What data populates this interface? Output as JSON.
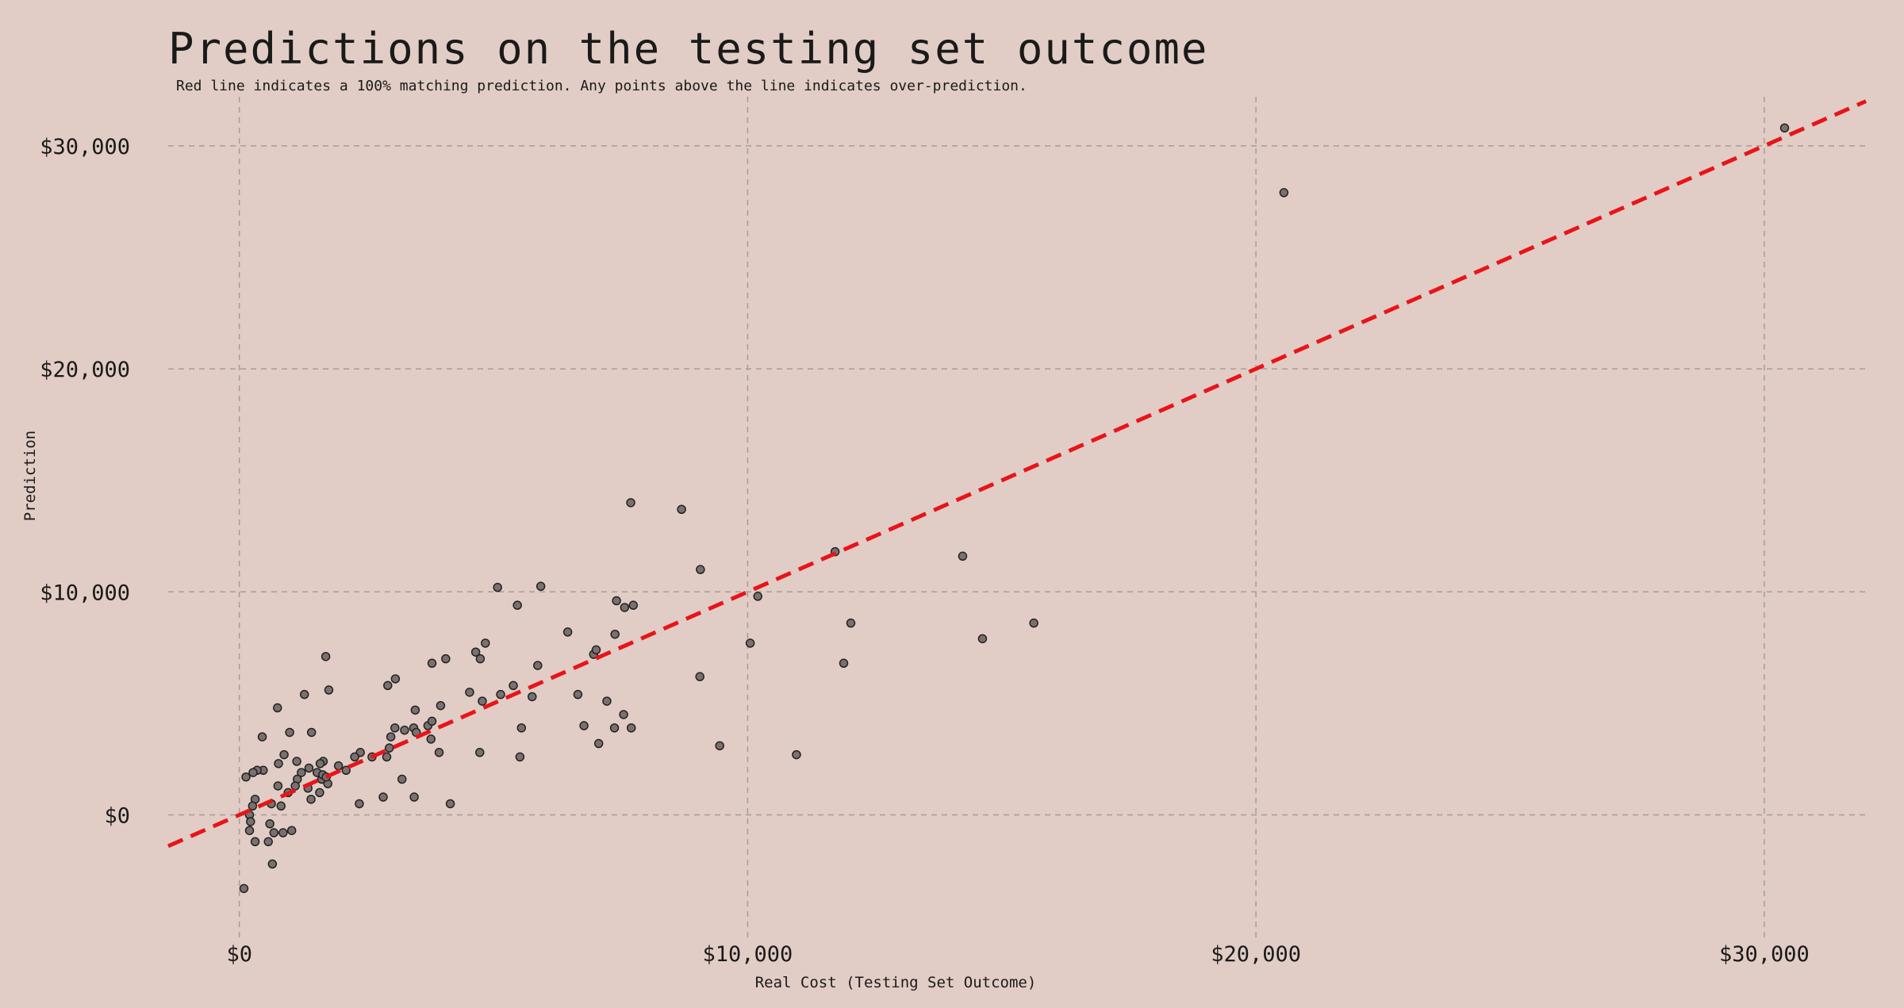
{
  "colors": {
    "background": "#e1cdc5",
    "grid": "#a89c97",
    "reference_line": "#e8141a",
    "point_fill": "#7a7070",
    "point_stroke": "#222222"
  },
  "chart_data": {
    "type": "scatter",
    "title": "Predictions on the testing set outcome",
    "subtitle": "Red line indicates a 100% matching prediction. Any points above the line indicates over-prediction.",
    "xlabel": "Real Cost (Testing Set Outcome)",
    "ylabel": "Prediction",
    "xlim": [
      -1400,
      32000
    ],
    "ylim": [
      -5600,
      32200
    ],
    "xticks": [
      0,
      10000,
      20000,
      30000
    ],
    "yticks": [
      0,
      10000,
      20000,
      30000
    ],
    "xtick_labels": [
      "$0",
      "$10,000",
      "$20,000",
      "$30,000"
    ],
    "ytick_labels": [
      "$0",
      "$10,000",
      "$20,000",
      "$30,000"
    ],
    "grid": true,
    "reference_line": {
      "style": "dashed",
      "slope": 1,
      "intercept": 0
    },
    "series": [
      {
        "points": [
          [
            30400,
            30800
          ],
          [
            20550,
            27900
          ],
          [
            7700,
            14000
          ],
          [
            8700,
            13700
          ],
          [
            14230,
            11600
          ],
          [
            11720,
            11800
          ],
          [
            9070,
            11000
          ],
          [
            5080,
            10200
          ],
          [
            5930,
            10250
          ],
          [
            5470,
            9400
          ],
          [
            7420,
            9600
          ],
          [
            7750,
            9400
          ],
          [
            7580,
            9300
          ],
          [
            10200,
            9800
          ],
          [
            10050,
            7700
          ],
          [
            12030,
            8600
          ],
          [
            14620,
            7900
          ],
          [
            15630,
            8600
          ],
          [
            11890,
            6800
          ],
          [
            9060,
            6200
          ],
          [
            9450,
            3100
          ],
          [
            10960,
            2700
          ],
          [
            6460,
            8200
          ],
          [
            7390,
            8100
          ],
          [
            6970,
            7200
          ],
          [
            7020,
            7400
          ],
          [
            6660,
            5400
          ],
          [
            6780,
            4000
          ],
          [
            7070,
            3200
          ],
          [
            7230,
            5100
          ],
          [
            7380,
            3900
          ],
          [
            7560,
            4500
          ],
          [
            7710,
            3900
          ],
          [
            4840,
            7700
          ],
          [
            4650,
            7300
          ],
          [
            4740,
            7000
          ],
          [
            4530,
            5500
          ],
          [
            4780,
            5100
          ],
          [
            5140,
            5400
          ],
          [
            5390,
            5800
          ],
          [
            5760,
            5300
          ],
          [
            5870,
            6700
          ],
          [
            5550,
            3900
          ],
          [
            5520,
            2600
          ],
          [
            4730,
            2800
          ],
          [
            4060,
            7000
          ],
          [
            3960,
            4900
          ],
          [
            3790,
            6800
          ],
          [
            3710,
            4000
          ],
          [
            3790,
            4200
          ],
          [
            3770,
            3400
          ],
          [
            3930,
            2800
          ],
          [
            3460,
            4700
          ],
          [
            3430,
            3900
          ],
          [
            3480,
            3700
          ],
          [
            3250,
            3800
          ],
          [
            3440,
            800
          ],
          [
            4150,
            500
          ],
          [
            3070,
            6100
          ],
          [
            2920,
            5800
          ],
          [
            3060,
            3900
          ],
          [
            2980,
            3500
          ],
          [
            2950,
            3000
          ],
          [
            2900,
            2600
          ],
          [
            2830,
            800
          ],
          [
            3200,
            1600
          ],
          [
            2610,
            2600
          ],
          [
            2380,
            2800
          ],
          [
            2270,
            2600
          ],
          [
            2360,
            500
          ],
          [
            2100,
            2000
          ],
          [
            1950,
            2200
          ],
          [
            1700,
            7100
          ],
          [
            1760,
            5600
          ],
          [
            1650,
            2400
          ],
          [
            1590,
            2300
          ],
          [
            1530,
            1900
          ],
          [
            1620,
            1600
          ],
          [
            1740,
            1400
          ],
          [
            1640,
            1800
          ],
          [
            1710,
            1700
          ],
          [
            1280,
            5400
          ],
          [
            1420,
            3700
          ],
          [
            1220,
            1900
          ],
          [
            1350,
            1200
          ],
          [
            1410,
            700
          ],
          [
            1580,
            1000
          ],
          [
            1130,
            2400
          ],
          [
            1140,
            1600
          ],
          [
            1370,
            2100
          ],
          [
            990,
            3700
          ],
          [
            880,
            2700
          ],
          [
            1100,
            1300
          ],
          [
            960,
            1000
          ],
          [
            1030,
            -700
          ],
          [
            750,
            4800
          ],
          [
            770,
            2300
          ],
          [
            760,
            1300
          ],
          [
            820,
            400
          ],
          [
            600,
            -400
          ],
          [
            680,
            -800
          ],
          [
            860,
            -800
          ],
          [
            570,
            -1200
          ],
          [
            630,
            500
          ],
          [
            450,
            3500
          ],
          [
            470,
            2000
          ],
          [
            350,
            2000
          ],
          [
            270,
            1900
          ],
          [
            130,
            1700
          ],
          [
            310,
            700
          ],
          [
            260,
            400
          ],
          [
            200,
            0
          ],
          [
            220,
            -300
          ],
          [
            200,
            -700
          ],
          [
            310,
            -1200
          ],
          [
            650,
            -2200
          ],
          [
            90,
            -3300
          ]
        ]
      }
    ]
  }
}
